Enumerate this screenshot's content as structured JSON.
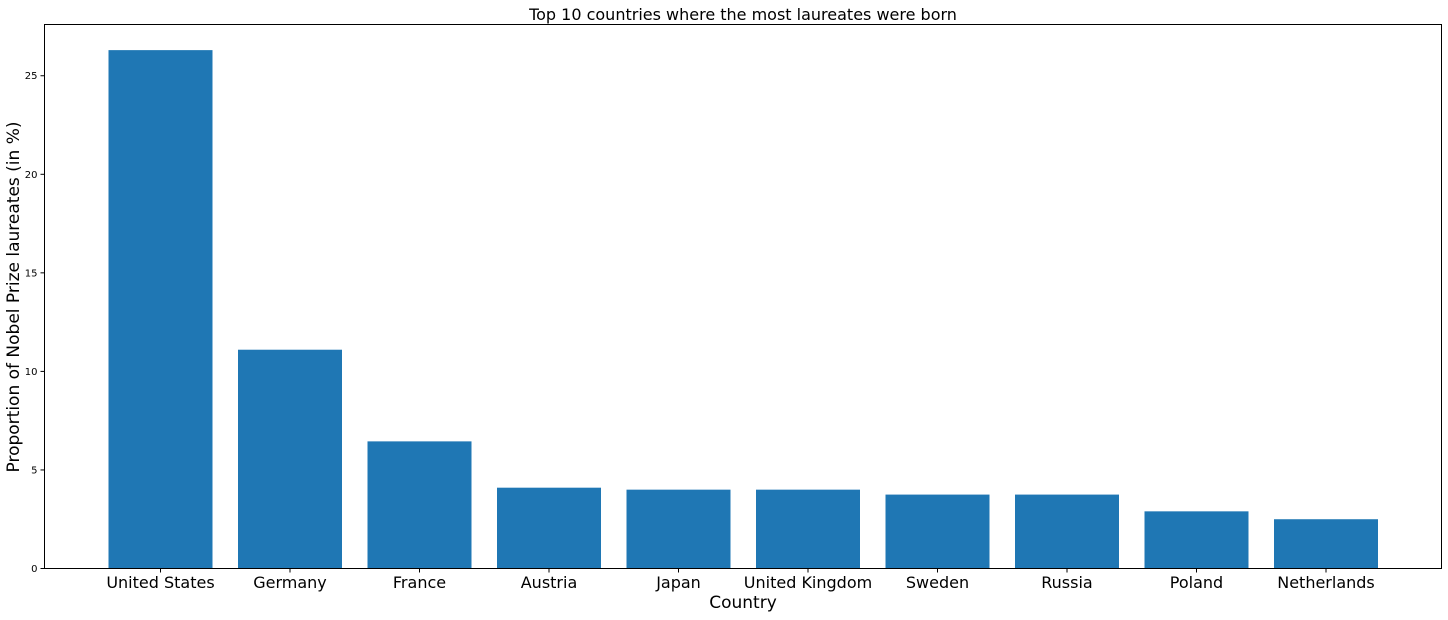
{
  "chart_data": {
    "type": "bar",
    "title": "Top 10 countries where the most laureates were born",
    "xlabel": "Country",
    "ylabel": "Proportion of Nobel Prize laureates (in %)",
    "categories": [
      "United States",
      "Germany",
      "France",
      "Austria",
      "Japan",
      "United Kingdom",
      "Sweden",
      "Russia",
      "Poland",
      "Netherlands"
    ],
    "values": [
      26.3,
      11.1,
      6.45,
      4.1,
      4.0,
      4.0,
      3.75,
      3.75,
      2.9,
      2.5
    ],
    "ylim": [
      0,
      27.6
    ],
    "yticks": [
      0,
      5,
      10,
      15,
      20,
      25
    ],
    "bar_color": "#1f77b4",
    "grid": false,
    "legend": "none"
  }
}
